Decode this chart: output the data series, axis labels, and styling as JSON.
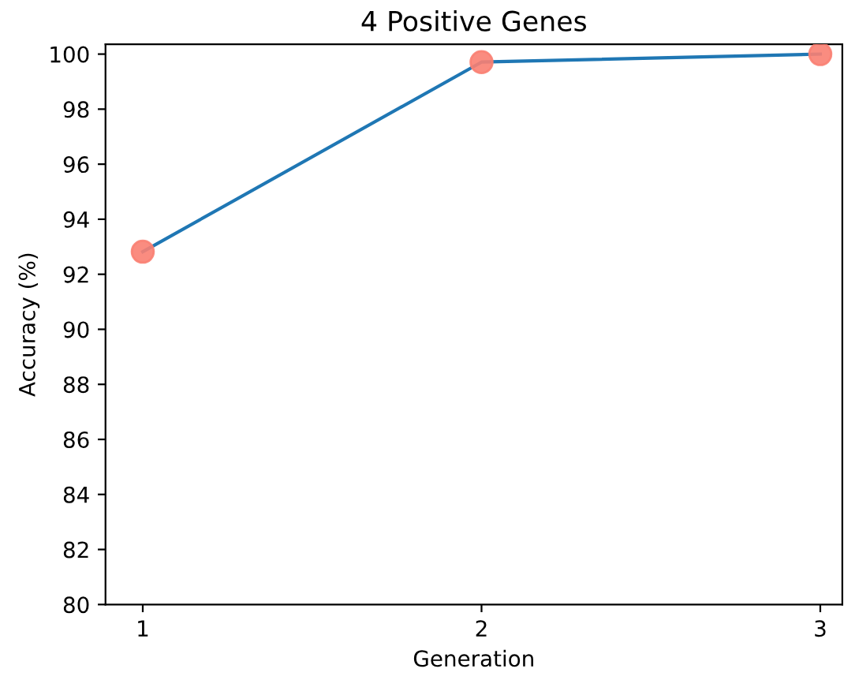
{
  "chart_data": {
    "type": "line",
    "title": "4 Positive Genes",
    "xlabel": "Generation",
    "ylabel": "Accuracy (%)",
    "x": [
      1,
      2,
      3
    ],
    "series": [
      {
        "color": "#1f77b4",
        "values": [
          92.82,
          99.71,
          100.0
        ]
      },
      {
        "type": "scatter",
        "color": "#fa8072",
        "values": [
          92.82,
          99.71,
          100.0
        ]
      }
    ],
    "xlim": [
      0.89,
      3.065
    ],
    "xticks": [
      1,
      2,
      3
    ],
    "ylim": [
      80,
      100.36
    ],
    "yticks": [
      80,
      82,
      84,
      86,
      88,
      90,
      92,
      94,
      96,
      98,
      100
    ],
    "grid": false,
    "legend": false
  }
}
